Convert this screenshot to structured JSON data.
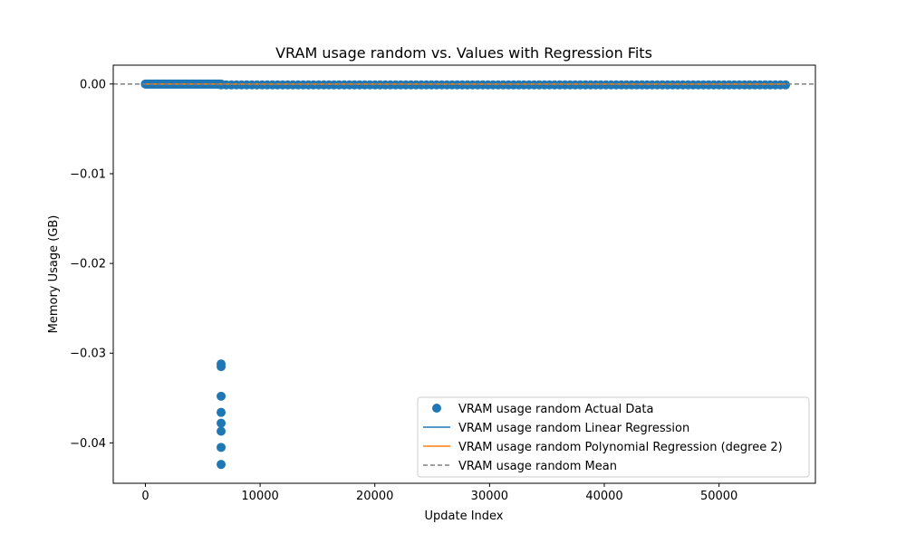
{
  "chart_data": {
    "type": "scatter",
    "title": "VRAM usage random vs. Values with Regression Fits",
    "xlabel": "Update Index",
    "ylabel": "Memory Usage (GB)",
    "xlim": [
      -2800,
      58400
    ],
    "ylim": [
      -0.0445,
      0.0021
    ],
    "x_ticks": [
      0,
      10000,
      20000,
      30000,
      40000,
      50000
    ],
    "x_tick_labels": [
      "0",
      "10000",
      "20000",
      "30000",
      "40000",
      "50000"
    ],
    "y_ticks": [
      0.0,
      -0.01,
      -0.02,
      -0.03,
      -0.04
    ],
    "y_tick_labels": [
      "0.00",
      "−0.01",
      "−0.02",
      "−0.03",
      "−0.04"
    ],
    "grid": false,
    "legend_position": "lower-right",
    "scatter": {
      "name": "VRAM usage random Actual Data",
      "color": "#1f77b4",
      "dense_band": [
        {
          "x_start": 0,
          "x_end": 6600,
          "y": 0.0
        },
        {
          "x_start": 6600,
          "x_end": 55800,
          "y": -0.0001
        }
      ],
      "outliers": [
        {
          "x": 6600,
          "y": -0.0312
        },
        {
          "x": 6600,
          "y": -0.0315
        },
        {
          "x": 6600,
          "y": -0.0348
        },
        {
          "x": 6600,
          "y": -0.0366
        },
        {
          "x": 6600,
          "y": -0.0378
        },
        {
          "x": 6600,
          "y": -0.0387
        },
        {
          "x": 6600,
          "y": -0.0405
        },
        {
          "x": 6600,
          "y": -0.0424
        }
      ]
    },
    "lines": [
      {
        "name": "VRAM usage random Linear Regression",
        "color": "#1f77b4",
        "style": "solid",
        "points": [
          [
            0,
            0.0
          ],
          [
            55800,
            0.0
          ]
        ]
      },
      {
        "name": "VRAM usage random Polynomial Regression (degree 2)",
        "color": "#ff7f0e",
        "style": "solid",
        "points": [
          [
            0,
            0.0
          ],
          [
            55800,
            0.0
          ]
        ]
      },
      {
        "name": "VRAM usage random Mean",
        "color": "#808080",
        "style": "dashed",
        "value": 0.0
      }
    ]
  }
}
